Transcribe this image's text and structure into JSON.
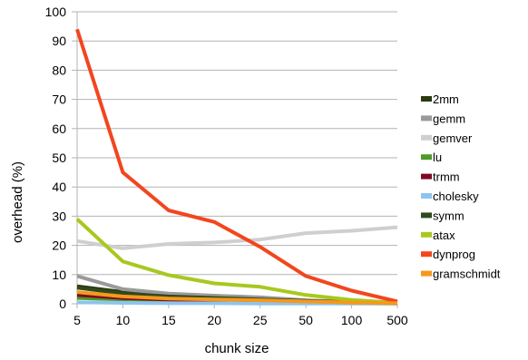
{
  "chart_data": {
    "type": "line",
    "xlabel": "chunk size",
    "ylabel": "overhead (%)",
    "categories": [
      "5",
      "10",
      "15",
      "20",
      "25",
      "50",
      "100",
      "500"
    ],
    "yticks": [
      0,
      10,
      20,
      30,
      40,
      50,
      60,
      70,
      80,
      90,
      100
    ],
    "ylim": [
      0,
      100
    ],
    "grid": "horizontal",
    "legend_position": "right",
    "series": [
      {
        "name": "2mm",
        "color": "#2a3a0f",
        "values": [
          6,
          4,
          3,
          2.5,
          2,
          1,
          0.5,
          0.3
        ]
      },
      {
        "name": "gemm",
        "color": "#9a9a9a",
        "values": [
          9.5,
          5,
          3.5,
          2.8,
          2.2,
          1.2,
          0.6,
          0.3
        ]
      },
      {
        "name": "gemver",
        "color": "#cfcfcf",
        "values": [
          21.5,
          19,
          20.5,
          21,
          22,
          24.2,
          25,
          26.2
        ]
      },
      {
        "name": "lu",
        "color": "#4e9a28",
        "values": [
          2,
          1.5,
          1,
          0.8,
          0.6,
          0.4,
          0.2,
          0.1
        ]
      },
      {
        "name": "trmm",
        "color": "#7b0a23",
        "values": [
          3,
          2,
          1.5,
          1,
          0.8,
          0.5,
          0.3,
          0.2
        ]
      },
      {
        "name": "cholesky",
        "color": "#8ec4ee",
        "values": [
          0.5,
          0.3,
          0.2,
          0.2,
          0.1,
          0.1,
          0.1,
          0.1
        ]
      },
      {
        "name": "symm",
        "color": "#2f4a1c",
        "values": [
          5.5,
          3.5,
          2.5,
          2,
          1.5,
          1,
          0.5,
          0.3
        ]
      },
      {
        "name": "atax",
        "color": "#a8c81f",
        "values": [
          29,
          14.5,
          9.8,
          7,
          5.8,
          3,
          1.3,
          0.3
        ]
      },
      {
        "name": "dynprog",
        "color": "#f2461e",
        "values": [
          94,
          45,
          32,
          28,
          19.5,
          9.5,
          4.5,
          0.8
        ]
      },
      {
        "name": "gramschmidt",
        "color": "#f7981c",
        "values": [
          4,
          2.5,
          1.8,
          1.5,
          1.2,
          0.8,
          0.4,
          0.2
        ]
      }
    ]
  }
}
